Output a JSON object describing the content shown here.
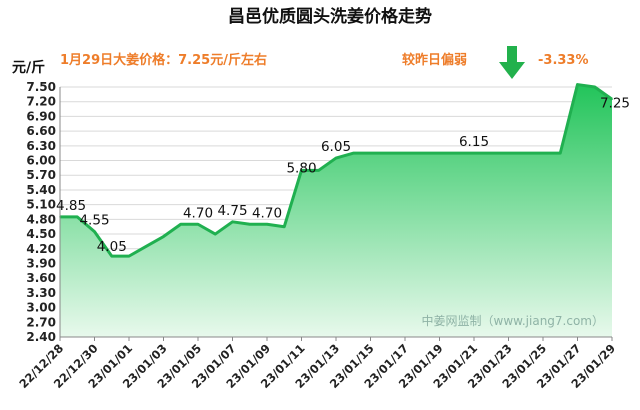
{
  "header": {
    "title": "昌邑优质圆头洗姜价格走势",
    "price_note": "1月29日大姜价格：7.25元/斤左右",
    "compare_text": "较昨日偏弱",
    "change_value": "-3.33%"
  },
  "colors": {
    "line": "#20b050",
    "fill_top": "#22c45a",
    "fill_bottom": "#e8f9ec",
    "accent": "#ee7d2a",
    "arrow": "#22b14c",
    "grid": "#d9d9d9"
  },
  "watermark": "中姜网监制（www.jiang7.com）",
  "chart_data": {
    "type": "area",
    "title": "昌邑优质圆头洗姜价格走势",
    "ylabel": "元/斤",
    "ylim": [
      2.4,
      7.5
    ],
    "yticks": [
      2.4,
      2.7,
      3.0,
      3.3,
      3.6,
      3.9,
      4.2,
      4.5,
      4.8,
      5.1,
      5.4,
      5.7,
      6.0,
      6.3,
      6.6,
      6.9,
      7.2,
      7.5
    ],
    "ytick_labels": [
      "2.40",
      "2.70",
      "3.00",
      "3.30",
      "3.60",
      "3.90",
      "4.20",
      "4.50",
      "4.80",
      "5.10",
      "5.40",
      "5.70",
      "6.00",
      "6.30",
      "6.60",
      "6.90",
      "7.20",
      "7.50"
    ],
    "x": [
      "22/12/28",
      "22/12/29",
      "22/12/30",
      "22/12/31",
      "23/01/01",
      "23/01/02",
      "23/01/03",
      "23/01/04",
      "23/01/05",
      "23/01/06",
      "23/01/07",
      "23/01/08",
      "23/01/09",
      "23/01/10",
      "23/01/11",
      "23/01/12",
      "23/01/13",
      "23/01/14",
      "23/01/15",
      "23/01/16",
      "23/01/17",
      "23/01/18",
      "23/01/19",
      "23/01/20",
      "23/01/21",
      "23/01/22",
      "23/01/23",
      "23/01/24",
      "23/01/25",
      "23/01/26",
      "23/01/27",
      "23/01/28",
      "23/01/29"
    ],
    "xtick_labels": [
      "22/12/28",
      "22/12/30",
      "23/01/01",
      "23/01/03",
      "23/01/05",
      "23/01/07",
      "23/01/09",
      "23/01/11",
      "23/01/13",
      "23/01/15",
      "23/01/17",
      "23/01/19",
      "23/01/21",
      "23/01/23",
      "23/01/25",
      "23/01/27",
      "23/01/29"
    ],
    "series": [
      {
        "values": [
          4.85,
          4.85,
          4.55,
          4.05,
          4.05,
          4.25,
          4.45,
          4.7,
          4.7,
          4.5,
          4.75,
          4.7,
          4.7,
          4.65,
          5.8,
          5.8,
          6.05,
          6.15,
          6.15,
          6.15,
          6.15,
          6.15,
          6.15,
          6.15,
          6.15,
          6.15,
          6.15,
          6.15,
          6.15,
          6.15,
          7.55,
          7.5,
          7.25
        ]
      }
    ],
    "data_labels": [
      {
        "index": 0,
        "text": "4.85"
      },
      {
        "index": 2,
        "text": "4.55"
      },
      {
        "index": 3,
        "text": "4.05"
      },
      {
        "index": 8,
        "text": "4.70"
      },
      {
        "index": 10,
        "text": "4.75"
      },
      {
        "index": 12,
        "text": "4.70"
      },
      {
        "index": 14,
        "text": "5.80"
      },
      {
        "index": 16,
        "text": "6.05"
      },
      {
        "index": 24,
        "text": "6.15"
      },
      {
        "index": 32,
        "text": "7.25"
      }
    ],
    "grid": true,
    "legend": "none"
  }
}
